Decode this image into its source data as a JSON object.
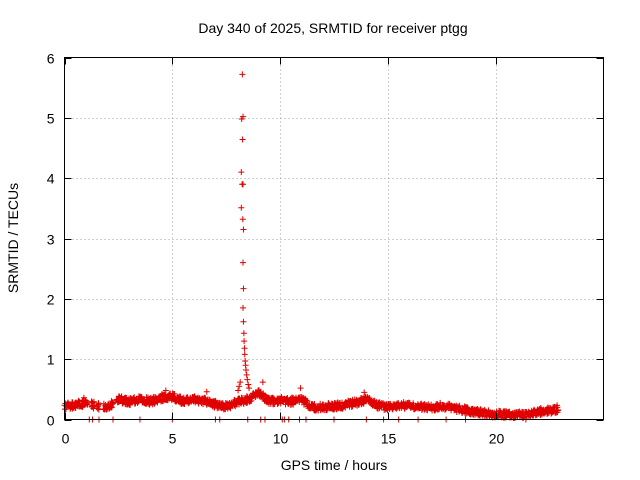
{
  "chart_data": {
    "type": "scatter",
    "title": "Day 340 of 2025, SRMTID for receiver ptgg",
    "xlabel": "GPS time / hours",
    "ylabel": "SRMTID / TECUs",
    "xlim": [
      0,
      25
    ],
    "ylim": [
      0,
      6
    ],
    "xticks": [
      0,
      5,
      10,
      15,
      20
    ],
    "yticks": [
      0,
      1,
      2,
      3,
      4,
      5,
      6
    ],
    "grid": true,
    "marker": "+",
    "color": "#e00000",
    "spike_points": [
      {
        "x": 8.25,
        "y": 5.72
      },
      {
        "x": 8.22,
        "y": 4.98
      },
      {
        "x": 8.28,
        "y": 5.02
      },
      {
        "x": 8.26,
        "y": 4.64
      },
      {
        "x": 8.2,
        "y": 4.1
      },
      {
        "x": 8.24,
        "y": 3.9
      },
      {
        "x": 8.28,
        "y": 3.9
      },
      {
        "x": 8.2,
        "y": 3.51
      },
      {
        "x": 8.27,
        "y": 3.32
      },
      {
        "x": 8.3,
        "y": 3.15
      },
      {
        "x": 8.28,
        "y": 2.6
      },
      {
        "x": 8.3,
        "y": 2.17
      },
      {
        "x": 8.28,
        "y": 1.85
      },
      {
        "x": 8.3,
        "y": 1.62
      },
      {
        "x": 8.32,
        "y": 1.43
      },
      {
        "x": 8.33,
        "y": 1.3
      },
      {
        "x": 8.35,
        "y": 1.18
      },
      {
        "x": 8.36,
        "y": 1.08
      },
      {
        "x": 8.38,
        "y": 0.97
      },
      {
        "x": 8.4,
        "y": 0.9
      },
      {
        "x": 8.42,
        "y": 0.82
      },
      {
        "x": 8.45,
        "y": 0.74
      },
      {
        "x": 8.48,
        "y": 0.66
      },
      {
        "x": 8.52,
        "y": 0.58
      },
      {
        "x": 8.56,
        "y": 0.52
      },
      {
        "x": 8.15,
        "y": 0.62
      },
      {
        "x": 8.1,
        "y": 0.55
      },
      {
        "x": 8.05,
        "y": 0.48
      }
    ],
    "profile": [
      {
        "x": 0.0,
        "y": 0.22
      },
      {
        "x": 0.5,
        "y": 0.24
      },
      {
        "x": 1.0,
        "y": 0.28
      },
      {
        "x": 1.5,
        "y": 0.22
      },
      {
        "x": 2.0,
        "y": 0.2
      },
      {
        "x": 2.5,
        "y": 0.33
      },
      {
        "x": 3.0,
        "y": 0.3
      },
      {
        "x": 3.5,
        "y": 0.33
      },
      {
        "x": 4.0,
        "y": 0.3
      },
      {
        "x": 4.5,
        "y": 0.36
      },
      {
        "x": 5.0,
        "y": 0.38
      },
      {
        "x": 5.5,
        "y": 0.3
      },
      {
        "x": 6.0,
        "y": 0.34
      },
      {
        "x": 6.5,
        "y": 0.3
      },
      {
        "x": 7.0,
        "y": 0.25
      },
      {
        "x": 7.5,
        "y": 0.22
      },
      {
        "x": 8.0,
        "y": 0.28
      },
      {
        "x": 8.6,
        "y": 0.35
      },
      {
        "x": 9.0,
        "y": 0.45
      },
      {
        "x": 9.5,
        "y": 0.3
      },
      {
        "x": 10.0,
        "y": 0.32
      },
      {
        "x": 10.5,
        "y": 0.3
      },
      {
        "x": 11.0,
        "y": 0.33
      },
      {
        "x": 11.5,
        "y": 0.2
      },
      {
        "x": 12.0,
        "y": 0.21
      },
      {
        "x": 12.5,
        "y": 0.22
      },
      {
        "x": 13.0,
        "y": 0.24
      },
      {
        "x": 13.5,
        "y": 0.28
      },
      {
        "x": 14.0,
        "y": 0.33
      },
      {
        "x": 14.5,
        "y": 0.24
      },
      {
        "x": 15.0,
        "y": 0.2
      },
      {
        "x": 15.5,
        "y": 0.22
      },
      {
        "x": 16.0,
        "y": 0.24
      },
      {
        "x": 16.5,
        "y": 0.21
      },
      {
        "x": 17.0,
        "y": 0.2
      },
      {
        "x": 17.5,
        "y": 0.22
      },
      {
        "x": 18.0,
        "y": 0.2
      },
      {
        "x": 18.5,
        "y": 0.16
      },
      {
        "x": 19.0,
        "y": 0.13
      },
      {
        "x": 19.5,
        "y": 0.1
      },
      {
        "x": 20.0,
        "y": 0.09
      },
      {
        "x": 20.5,
        "y": 0.08
      },
      {
        "x": 21.0,
        "y": 0.08
      },
      {
        "x": 21.5,
        "y": 0.07
      },
      {
        "x": 22.0,
        "y": 0.13
      },
      {
        "x": 22.5,
        "y": 0.15
      },
      {
        "x": 22.9,
        "y": 0.18
      }
    ],
    "noise_amplitude": 0.06,
    "noise_points": [
      {
        "x": 10.95,
        "y": 0.52
      },
      {
        "x": 9.2,
        "y": 0.62
      },
      {
        "x": 13.9,
        "y": 0.45
      },
      {
        "x": 4.7,
        "y": 0.48
      },
      {
        "x": 6.6,
        "y": 0.46
      },
      {
        "x": 0.9,
        "y": 0.36
      }
    ],
    "gap_intervals": [
      {
        "start": 1.1,
        "end": 1.25
      },
      {
        "start": 1.4,
        "end": 1.5
      },
      {
        "start": 1.6,
        "end": 1.8
      },
      {
        "start": 2.25,
        "end": 2.4
      }
    ],
    "zero_points": [
      {
        "x": 1.15,
        "y": 0.0
      },
      {
        "x": 1.3,
        "y": 0.0
      },
      {
        "x": 1.6,
        "y": 0.0
      },
      {
        "x": 2.25,
        "y": 0.0
      },
      {
        "x": 3.5,
        "y": 0.0
      },
      {
        "x": 5.0,
        "y": 0.0
      },
      {
        "x": 7.0,
        "y": 0.0
      },
      {
        "x": 7.2,
        "y": 0.0
      },
      {
        "x": 8.5,
        "y": 0.0
      },
      {
        "x": 9.1,
        "y": 0.0
      },
      {
        "x": 9.3,
        "y": 0.0
      },
      {
        "x": 10.1,
        "y": 0.0
      },
      {
        "x": 10.2,
        "y": 0.0
      },
      {
        "x": 10.4,
        "y": 0.0
      },
      {
        "x": 10.9,
        "y": 0.0
      },
      {
        "x": 11.2,
        "y": 0.0
      },
      {
        "x": 12.5,
        "y": 0.0
      },
      {
        "x": 14.0,
        "y": 0.0
      },
      {
        "x": 14.8,
        "y": 0.0
      },
      {
        "x": 15.5,
        "y": 0.0
      },
      {
        "x": 16.4,
        "y": 0.0
      },
      {
        "x": 17.7,
        "y": 0.0
      },
      {
        "x": 18.6,
        "y": 0.0
      },
      {
        "x": 21.4,
        "y": 0.0
      }
    ]
  }
}
